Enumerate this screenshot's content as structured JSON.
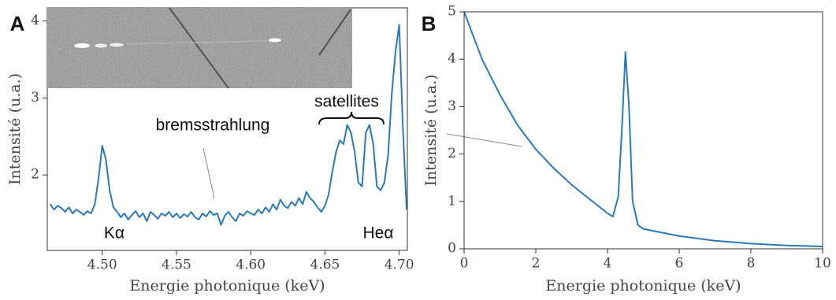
{
  "chart_data": [
    {
      "type": "line",
      "panel_label": "A",
      "x_label": "Energie photonique (keV)",
      "y_label": "Intensité (u.a.)",
      "xlim": [
        4.463,
        4.7055
      ],
      "ylim": [
        1.02,
        4.17
      ],
      "xticks": [
        {
          "value": 4.5,
          "label": "4.50"
        },
        4.55,
        {
          "value": 4.6,
          "label": "4.60"
        },
        4.65,
        {
          "value": 4.7,
          "label": "4.70"
        }
      ],
      "yticks": [
        2,
        3,
        4
      ],
      "annotations": [
        "Kα",
        "satellites",
        "bremsstrahlung",
        "Heα"
      ],
      "x": [
        4.465,
        4.4675,
        4.47,
        4.4725,
        4.475,
        4.4775,
        4.48,
        4.4825,
        4.485,
        4.4875,
        4.49,
        4.4925,
        4.495,
        4.4975,
        4.5,
        4.5025,
        4.505,
        4.5075,
        4.51,
        4.5125,
        4.515,
        4.5175,
        4.52,
        4.5225,
        4.525,
        4.5275,
        4.53,
        4.5325,
        4.535,
        4.5375,
        4.54,
        4.5425,
        4.545,
        4.5475,
        4.55,
        4.5525,
        4.555,
        4.5575,
        4.56,
        4.5625,
        4.565,
        4.5675,
        4.57,
        4.5725,
        4.575,
        4.5775,
        4.58,
        4.5825,
        4.585,
        4.5875,
        4.59,
        4.5925,
        4.595,
        4.5975,
        4.6,
        4.6025,
        4.605,
        4.6075,
        4.61,
        4.6125,
        4.615,
        4.6175,
        4.62,
        4.6225,
        4.625,
        4.6275,
        4.63,
        4.6325,
        4.635,
        4.6375,
        4.64,
        4.6425,
        4.645,
        4.6475,
        4.65,
        4.6525,
        4.655,
        4.6575,
        4.66,
        4.6625,
        4.665,
        4.6675,
        4.67,
        4.6725,
        4.675,
        4.6775,
        4.68,
        4.6825,
        4.685,
        4.6875,
        4.69,
        4.6925,
        4.695,
        4.6975,
        4.7,
        4.7025,
        4.705
      ],
      "series": [
        {
          "color": "#2a7ab9",
          "values": [
            1.62,
            1.55,
            1.6,
            1.57,
            1.52,
            1.58,
            1.5,
            1.55,
            1.52,
            1.48,
            1.53,
            1.5,
            1.62,
            1.95,
            2.38,
            2.2,
            1.8,
            1.58,
            1.52,
            1.45,
            1.5,
            1.42,
            1.48,
            1.53,
            1.45,
            1.5,
            1.4,
            1.52,
            1.48,
            1.43,
            1.5,
            1.47,
            1.52,
            1.45,
            1.5,
            1.44,
            1.49,
            1.46,
            1.52,
            1.45,
            1.42,
            1.5,
            1.46,
            1.53,
            1.48,
            1.5,
            1.35,
            1.47,
            1.52,
            1.45,
            1.4,
            1.5,
            1.47,
            1.53,
            1.5,
            1.48,
            1.55,
            1.5,
            1.58,
            1.52,
            1.62,
            1.55,
            1.68,
            1.6,
            1.57,
            1.65,
            1.6,
            1.7,
            1.62,
            1.78,
            1.7,
            1.65,
            1.58,
            1.52,
            1.6,
            1.75,
            2.05,
            2.3,
            2.45,
            2.4,
            2.65,
            2.55,
            2.3,
            1.9,
            1.85,
            2.55,
            2.65,
            2.4,
            1.85,
            1.8,
            1.9,
            2.25,
            3.05,
            3.6,
            3.95,
            2.6,
            1.55
          ]
        }
      ]
    },
    {
      "type": "line",
      "panel_label": "B",
      "x_label": "Energie photonique (keV)",
      "y_label": "Intensité (u.a.)",
      "xlim": [
        0,
        10
      ],
      "ylim": [
        0,
        5
      ],
      "xticks": [
        0,
        2,
        4,
        6,
        8,
        10
      ],
      "yticks": [
        0,
        1,
        2,
        3,
        4,
        5
      ],
      "x": [
        0,
        0.5,
        1,
        1.5,
        2,
        2.5,
        3,
        3.5,
        4,
        4.15,
        4.3,
        4.4,
        4.5,
        4.6,
        4.7,
        4.85,
        5,
        6,
        7,
        8,
        9,
        10
      ],
      "series": [
        {
          "color": "#2a7ab9",
          "values": [
            5.0,
            4.0,
            3.25,
            2.6,
            2.1,
            1.7,
            1.35,
            1.05,
            0.75,
            0.68,
            1.1,
            2.5,
            4.15,
            3.0,
            1.0,
            0.5,
            0.42,
            0.27,
            0.17,
            0.11,
            0.07,
            0.05
          ]
        }
      ]
    }
  ]
}
